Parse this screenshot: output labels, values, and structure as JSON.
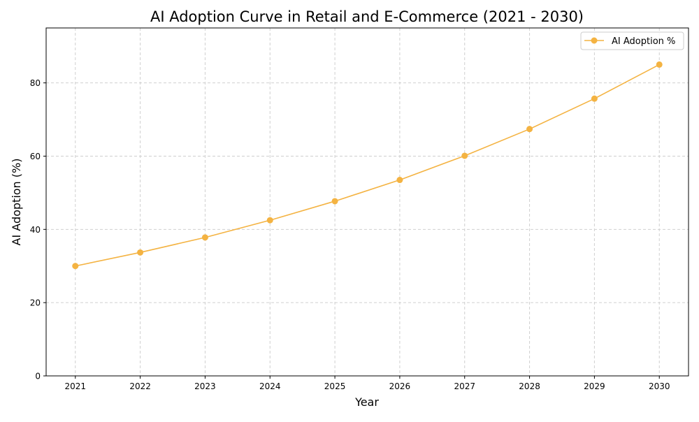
{
  "chart_data": {
    "type": "line",
    "title": "AI Adoption Curve in Retail and E-Commerce (2021 - 2030)",
    "xlabel": "Year",
    "ylabel": "AI Adoption (%)",
    "x": [
      2021,
      2022,
      2023,
      2024,
      2025,
      2026,
      2027,
      2028,
      2029,
      2030
    ],
    "series": [
      {
        "name": "AI Adoption %",
        "values": [
          30.0,
          33.7,
          37.8,
          42.5,
          47.7,
          53.5,
          60.1,
          67.4,
          75.7,
          85.0
        ],
        "color": "#f4b342",
        "marker": "circle"
      }
    ],
    "xticks": [
      "2021",
      "2022",
      "2023",
      "2024",
      "2025",
      "2026",
      "2027",
      "2028",
      "2029",
      "2030"
    ],
    "yticks": [
      "0",
      "20",
      "40",
      "60",
      "80"
    ],
    "xlim": [
      2020.55,
      2030.45
    ],
    "ylim": [
      0,
      95
    ],
    "grid": true,
    "grid_style": "dashed",
    "legend_position": "top-right"
  }
}
